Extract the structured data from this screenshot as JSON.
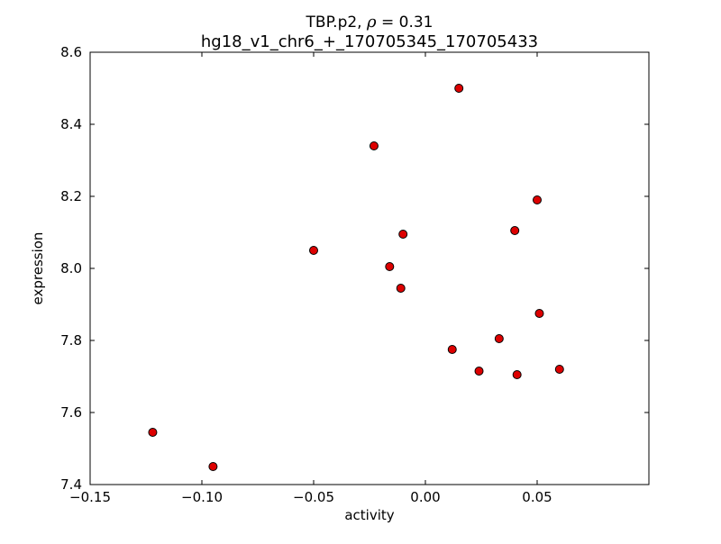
{
  "figure": {
    "title_line1": {
      "prefix": "TBP.p2, ",
      "rho": "ρ",
      "suffix": " = 0.31"
    },
    "title_line2": "hg18_v1_chr6_+_170705345_170705433"
  },
  "chart_data": {
    "type": "scatter",
    "title": "TBP.p2, ρ = 0.31",
    "subtitle": "hg18_v1_chr6_+_170705345_170705433",
    "xlabel": "activity",
    "ylabel": "expression",
    "xlim": [
      -0.15,
      0.1
    ],
    "ylim": [
      7.4,
      8.6
    ],
    "xticks": [
      -0.15,
      -0.1,
      -0.05,
      0.0,
      0.05
    ],
    "ytticks_note": "y ticks evenly spaced every 0.2",
    "yticks": [
      7.4,
      7.6,
      7.8,
      8.0,
      8.2,
      8.4,
      8.6
    ],
    "xtick_labels": [
      "−0.15",
      "−0.10",
      "−0.05",
      "0.00",
      "0.05"
    ],
    "ytick_labels": [
      "7.4",
      "7.6",
      "7.8",
      "8.0",
      "8.2",
      "8.4",
      "8.6"
    ],
    "grid": false,
    "legend": null,
    "marker": {
      "shape": "circle",
      "fill": "#dd0000",
      "edge": "#000000",
      "radius_px": 4.5
    },
    "points": [
      {
        "x": 0.015,
        "y": 8.5
      },
      {
        "x": -0.023,
        "y": 8.34
      },
      {
        "x": 0.05,
        "y": 8.19
      },
      {
        "x": 0.04,
        "y": 8.105
      },
      {
        "x": -0.01,
        "y": 8.095
      },
      {
        "x": -0.05,
        "y": 8.05
      },
      {
        "x": -0.016,
        "y": 8.005
      },
      {
        "x": -0.011,
        "y": 7.945
      },
      {
        "x": 0.051,
        "y": 7.875
      },
      {
        "x": 0.033,
        "y": 7.805
      },
      {
        "x": 0.012,
        "y": 7.775
      },
      {
        "x": 0.024,
        "y": 7.715
      },
      {
        "x": 0.041,
        "y": 7.705
      },
      {
        "x": 0.06,
        "y": 7.72
      },
      {
        "x": -0.122,
        "y": 7.545
      },
      {
        "x": -0.095,
        "y": 7.45
      }
    ]
  }
}
